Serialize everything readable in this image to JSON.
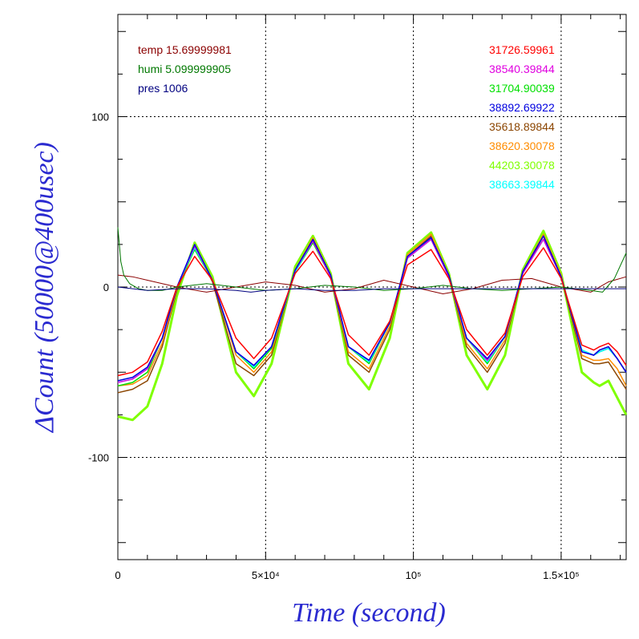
{
  "chart_data": {
    "type": "line",
    "xlabel": "Time (second)",
    "ylabel": "ΔCount (50000@400usec)",
    "xlim": [
      0,
      172000
    ],
    "ylim": [
      -160,
      160
    ],
    "x_ticks": [
      {
        "value": 0,
        "label": "0"
      },
      {
        "value": 50000,
        "label": "5×10⁴"
      },
      {
        "value": 100000,
        "label": "10⁵"
      },
      {
        "value": 150000,
        "label": "1.5×10⁵"
      }
    ],
    "y_ticks": [
      {
        "value": -100,
        "label": "-100"
      },
      {
        "value": 0,
        "label": "0"
      },
      {
        "value": 100,
        "label": "100"
      }
    ],
    "grid": true,
    "legend_left": [
      {
        "text": "temp 15.69999981",
        "color": "#8b0000"
      },
      {
        "text": "humi 5.099999905",
        "color": "#007800"
      },
      {
        "text": "pres 1006",
        "color": "#000080"
      }
    ],
    "legend_right": [
      {
        "text": "31726.59961",
        "color": "#ff0000"
      },
      {
        "text": "38540.39844",
        "color": "#e000e0"
      },
      {
        "text": "31704.90039",
        "color": "#00e000"
      },
      {
        "text": "38892.69922",
        "color": "#0000e0"
      },
      {
        "text": "35618.89844",
        "color": "#8b4500"
      },
      {
        "text": "38620.30078",
        "color": "#ff8c00"
      },
      {
        "text": "44203.30078",
        "color": "#7fff00"
      },
      {
        "text": "38663.39844",
        "color": "#00ffff"
      }
    ],
    "series": [
      {
        "color": "#7fff00",
        "width": 3,
        "x": [
          0,
          5000,
          10000,
          15000,
          20000,
          26000,
          32000,
          40000,
          46000,
          52000,
          60000,
          66000,
          72000,
          78000,
          85000,
          92000,
          98000,
          106000,
          112000,
          118000,
          125000,
          131000,
          137000,
          144000,
          150000,
          157000,
          161000,
          163000,
          166000,
          169000,
          172000
        ],
        "y": [
          -76,
          -78,
          -70,
          -45,
          -5,
          26,
          6,
          -50,
          -64,
          -45,
          12,
          30,
          8,
          -45,
          -60,
          -30,
          20,
          32,
          8,
          -40,
          -60,
          -40,
          10,
          33,
          8,
          -50,
          -56,
          -58,
          -55,
          -65,
          -75
        ]
      },
      {
        "color": "#8b4500",
        "width": 1.5,
        "x": [
          0,
          5000,
          10000,
          15000,
          20000,
          26000,
          32000,
          40000,
          46000,
          52000,
          60000,
          66000,
          72000,
          78000,
          85000,
          92000,
          98000,
          106000,
          112000,
          118000,
          125000,
          131000,
          137000,
          144000,
          150000,
          157000,
          161000,
          163000,
          166000,
          169000,
          172000
        ],
        "y": [
          -62,
          -60,
          -55,
          -35,
          -2,
          24,
          3,
          -45,
          -52,
          -40,
          10,
          28,
          6,
          -40,
          -50,
          -25,
          18,
          30,
          6,
          -35,
          -50,
          -33,
          8,
          30,
          6,
          -42,
          -45,
          -45,
          -44,
          -52,
          -60
        ]
      },
      {
        "color": "#ff8c00",
        "width": 1.5,
        "x": [
          0,
          5000,
          10000,
          15000,
          20000,
          26000,
          32000,
          40000,
          46000,
          52000,
          60000,
          66000,
          72000,
          78000,
          85000,
          92000,
          98000,
          106000,
          112000,
          118000,
          125000,
          131000,
          137000,
          144000,
          150000,
          157000,
          161000,
          163000,
          166000,
          169000,
          172000
        ],
        "y": [
          -58,
          -57,
          -52,
          -33,
          -1,
          25,
          4,
          -40,
          -50,
          -38,
          10,
          29,
          7,
          -38,
          -48,
          -23,
          19,
          31,
          7,
          -33,
          -48,
          -31,
          9,
          31,
          7,
          -40,
          -43,
          -43,
          -42,
          -48,
          -58
        ]
      },
      {
        "color": "#00e000",
        "width": 1.5,
        "x": [
          0,
          5000,
          10000,
          15000,
          20000,
          26000,
          32000,
          40000,
          46000,
          52000,
          60000,
          66000,
          72000,
          78000,
          85000,
          92000,
          98000,
          106000,
          112000,
          118000,
          125000,
          131000,
          137000,
          144000,
          150000,
          157000,
          161000,
          163000,
          166000,
          169000,
          172000
        ],
        "y": [
          -58,
          -56,
          -50,
          -30,
          0,
          22,
          4,
          -38,
          -48,
          -36,
          9,
          26,
          6,
          -35,
          -45,
          -21,
          17,
          28,
          6,
          -30,
          -45,
          -29,
          8,
          28,
          6,
          -37,
          -40,
          -38,
          -36,
          -42,
          -50
        ]
      },
      {
        "color": "#00ffff",
        "width": 1.5,
        "x": [
          0,
          5000,
          10000,
          15000,
          20000,
          26000,
          32000,
          40000,
          46000,
          52000,
          60000,
          66000,
          72000,
          78000,
          85000,
          92000,
          98000,
          106000,
          112000,
          118000,
          125000,
          131000,
          137000,
          144000,
          150000,
          157000,
          161000,
          163000,
          166000,
          169000,
          172000
        ],
        "y": [
          -56,
          -54,
          -48,
          -30,
          0,
          23,
          4,
          -38,
          -47,
          -35,
          9,
          27,
          6,
          -35,
          -44,
          -21,
          17,
          28,
          6,
          -30,
          -44,
          -29,
          8,
          28,
          6,
          -37,
          -40,
          -38,
          -36,
          -42,
          -50
        ]
      },
      {
        "color": "#e000e0",
        "width": 1.5,
        "x": [
          0,
          5000,
          10000,
          15000,
          20000,
          26000,
          32000,
          40000,
          46000,
          52000,
          60000,
          66000,
          72000,
          78000,
          85000,
          92000,
          98000,
          106000,
          112000,
          118000,
          125000,
          131000,
          137000,
          144000,
          150000,
          157000,
          161000,
          163000,
          166000,
          169000,
          172000
        ],
        "y": [
          -56,
          -54,
          -48,
          -30,
          0,
          24,
          4,
          -38,
          -46,
          -35,
          10,
          27,
          6,
          -35,
          -43,
          -21,
          17,
          28,
          6,
          -30,
          -43,
          -29,
          8,
          28,
          6,
          -38,
          -40,
          -37,
          -35,
          -42,
          -50
        ]
      },
      {
        "color": "#0000e0",
        "width": 1.5,
        "x": [
          0,
          5000,
          10000,
          15000,
          20000,
          26000,
          32000,
          40000,
          46000,
          52000,
          60000,
          66000,
          72000,
          78000,
          85000,
          92000,
          98000,
          106000,
          112000,
          118000,
          125000,
          131000,
          137000,
          144000,
          150000,
          157000,
          161000,
          163000,
          166000,
          169000,
          172000
        ],
        "y": [
          -55,
          -53,
          -47,
          -30,
          0,
          25,
          4,
          -38,
          -46,
          -35,
          10,
          28,
          7,
          -35,
          -43,
          -21,
          18,
          29,
          7,
          -30,
          -42,
          -29,
          9,
          30,
          6,
          -38,
          -40,
          -37,
          -35,
          -42,
          -50
        ]
      },
      {
        "color": "#ff0000",
        "width": 1.5,
        "x": [
          0,
          5000,
          10000,
          15000,
          20000,
          26000,
          32000,
          40000,
          46000,
          52000,
          60000,
          66000,
          72000,
          78000,
          85000,
          92000,
          98000,
          106000,
          112000,
          118000,
          125000,
          131000,
          137000,
          144000,
          150000,
          157000,
          161000,
          163000,
          166000,
          169000,
          172000
        ],
        "y": [
          -52,
          -50,
          -44,
          -26,
          0,
          18,
          4,
          -30,
          -42,
          -30,
          8,
          21,
          5,
          -28,
          -40,
          -20,
          13,
          22,
          5,
          -25,
          -40,
          -27,
          6,
          23,
          5,
          -34,
          -37,
          -35,
          -33,
          -38,
          -46
        ]
      },
      {
        "color": "#8b0000",
        "width": 1,
        "x": [
          0,
          5000,
          10000,
          20000,
          30000,
          40000,
          50000,
          60000,
          70000,
          80000,
          90000,
          100000,
          110000,
          120000,
          130000,
          140000,
          150000,
          160000,
          166000,
          172000
        ],
        "y": [
          7,
          6,
          4,
          0,
          -3,
          0,
          3,
          1,
          -3,
          -1,
          4,
          0,
          -4,
          -1,
          4,
          5,
          0,
          -3,
          3,
          6
        ]
      },
      {
        "color": "#007800",
        "width": 1,
        "x": [
          0,
          1000,
          2000,
          4000,
          7000,
          10000,
          15000,
          20000,
          25000,
          30000,
          40000,
          50000,
          60000,
          70000,
          80000,
          90000,
          100000,
          110000,
          120000,
          130000,
          140000,
          150000,
          155000,
          160000,
          164000,
          168000,
          172000
        ],
        "y": [
          35,
          15,
          7,
          2,
          -1,
          -2,
          -2,
          0,
          1,
          2,
          0,
          -2,
          -1,
          1,
          0,
          -2,
          -1,
          1,
          -1,
          -2,
          -1,
          0,
          -1,
          -2,
          -3,
          5,
          20
        ]
      },
      {
        "color": "#000080",
        "width": 1,
        "x": [
          0,
          10000,
          20000,
          30000,
          40000,
          45000,
          50000,
          60000,
          70000,
          80000,
          90000,
          100000,
          110000,
          120000,
          130000,
          140000,
          150000,
          160000,
          172000
        ],
        "y": [
          0,
          -2,
          -1,
          -1,
          -2,
          -3,
          -2,
          -1,
          -2,
          -2,
          -1,
          -1,
          -1,
          -1,
          -1,
          -1,
          -1,
          -1,
          -1
        ]
      }
    ]
  }
}
